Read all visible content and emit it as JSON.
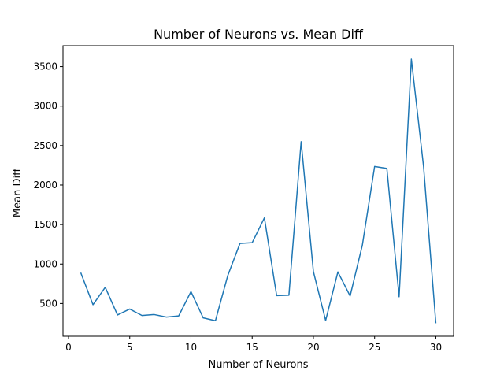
{
  "chart_data": {
    "type": "line",
    "title": "Number of Neurons vs. Mean Diff",
    "xlabel": "Number of Neurons",
    "ylabel": "Mean Diff",
    "x": [
      1,
      2,
      3,
      4,
      5,
      6,
      7,
      8,
      9,
      10,
      11,
      12,
      13,
      14,
      15,
      16,
      17,
      18,
      19,
      20,
      21,
      22,
      23,
      24,
      25,
      26,
      27,
      28,
      29,
      30
    ],
    "series": [
      {
        "values": [
          890,
          485,
          705,
          355,
          430,
          348,
          360,
          328,
          343,
          650,
          318,
          282,
          850,
          1260,
          1270,
          1585,
          600,
          605,
          2550,
          905,
          285,
          900,
          595,
          1240,
          2235,
          2210,
          585,
          3595,
          2230,
          250
        ],
        "color": "#1f77b4"
      }
    ],
    "xlim": [
      -0.45,
      31.45
    ],
    "ylim": [
      85,
      3765
    ],
    "xticks": [
      0,
      5,
      10,
      15,
      20,
      25,
      30
    ],
    "yticks": [
      500,
      1000,
      1500,
      2000,
      2500,
      3000,
      3500
    ],
    "grid": false,
    "legend": "none"
  }
}
